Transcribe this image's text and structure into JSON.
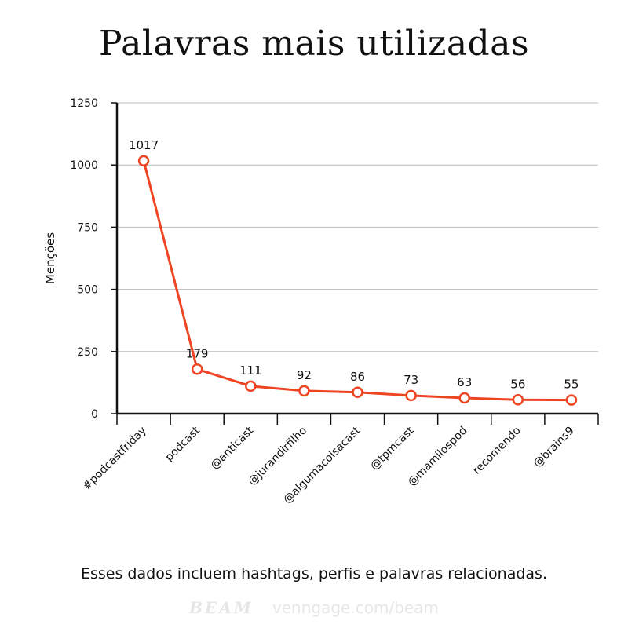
{
  "title": "Palavras mais utilizadas",
  "caption": "Esses dados incluem hashtags, perfis e palavras relacionadas.",
  "footer": {
    "brand": "BEAM",
    "source": "venngage.com/beam"
  },
  "colors": {
    "line": "#ee4422",
    "grid": "#bbbbbb",
    "axis": "#111111",
    "footer": "#e6e6e6"
  },
  "chart_data": {
    "type": "line",
    "title": "Palavras mais utilizadas",
    "xlabel": "",
    "ylabel": "Menções",
    "categories": [
      "#podcastfriday",
      "podcast",
      "@anticast",
      "@jurandirfilho",
      "@algumacoisacast",
      "@tpmcast",
      "@mamilospod",
      "recomendo",
      "@brains9"
    ],
    "values": [
      1017,
      179,
      111,
      92,
      86,
      73,
      63,
      56,
      55
    ],
    "ylim": [
      0,
      1250
    ],
    "yticks": [
      0,
      250,
      500,
      750,
      1000,
      1250
    ],
    "grid": true,
    "legend": "none",
    "data_labels": true
  }
}
